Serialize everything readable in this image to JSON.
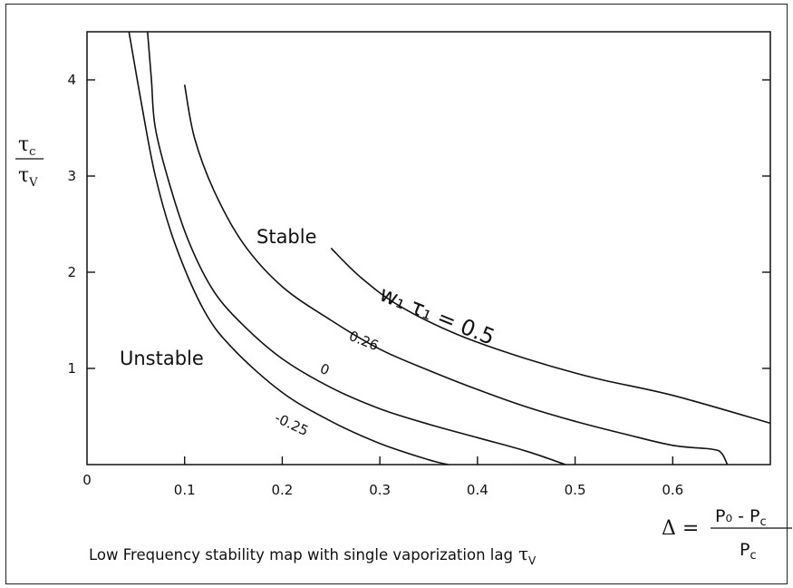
{
  "chart_data": {
    "type": "line",
    "title": "",
    "caption": "Low Frequency stability map with single vaporization lag",
    "caption_symbol": "τ",
    "caption_symbol_sub": "V",
    "xlim": [
      0,
      0.7
    ],
    "ylim": [
      0,
      4.5
    ],
    "x_ticks": [
      "0",
      "0.1",
      "0.2",
      "0.3",
      "0.4",
      "0.5",
      "0.6"
    ],
    "y_ticks": [
      "1",
      "2",
      "3",
      "4"
    ],
    "y_axis_label": {
      "num": "τ",
      "num_sub": "c",
      "den": "τ",
      "den_sub": "V"
    },
    "x_axis_label": {
      "lhs": "Δ =",
      "num": "P₀ - P",
      "num_sub": "c",
      "den": "P",
      "den_sub": "c"
    },
    "regions": {
      "stable": "Stable",
      "unstable": "Unstable"
    },
    "series": [
      {
        "name": "-0.25",
        "points": [
          [
            0.043,
            4.5
          ],
          [
            0.055,
            3.8
          ],
          [
            0.07,
            3.0
          ],
          [
            0.09,
            2.3
          ],
          [
            0.12,
            1.6
          ],
          [
            0.15,
            1.2
          ],
          [
            0.2,
            0.75
          ],
          [
            0.25,
            0.45
          ],
          [
            0.3,
            0.22
          ],
          [
            0.35,
            0.05
          ],
          [
            0.37,
            0.0
          ]
        ]
      },
      {
        "name": "0",
        "points": [
          [
            0.062,
            4.5
          ],
          [
            0.066,
            4.0
          ],
          [
            0.07,
            3.5
          ],
          [
            0.085,
            2.9
          ],
          [
            0.105,
            2.3
          ],
          [
            0.13,
            1.8
          ],
          [
            0.16,
            1.45
          ],
          [
            0.2,
            1.1
          ],
          [
            0.25,
            0.8
          ],
          [
            0.3,
            0.58
          ],
          [
            0.35,
            0.42
          ],
          [
            0.4,
            0.28
          ],
          [
            0.45,
            0.14
          ],
          [
            0.49,
            0.0
          ]
        ]
      },
      {
        "name": "0.26",
        "points": [
          [
            0.1,
            3.95
          ],
          [
            0.11,
            3.4
          ],
          [
            0.13,
            2.85
          ],
          [
            0.16,
            2.3
          ],
          [
            0.2,
            1.85
          ],
          [
            0.25,
            1.5
          ],
          [
            0.3,
            1.2
          ],
          [
            0.35,
            0.98
          ],
          [
            0.4,
            0.78
          ],
          [
            0.45,
            0.6
          ],
          [
            0.5,
            0.45
          ],
          [
            0.55,
            0.32
          ],
          [
            0.6,
            0.2
          ],
          [
            0.64,
            0.16
          ],
          [
            0.65,
            0.12
          ],
          [
            0.656,
            0.0
          ]
        ]
      },
      {
        "name": "w₁ τ₁ = 0.5",
        "points": [
          [
            0.25,
            2.25
          ],
          [
            0.28,
            1.95
          ],
          [
            0.32,
            1.65
          ],
          [
            0.38,
            1.35
          ],
          [
            0.45,
            1.1
          ],
          [
            0.52,
            0.9
          ],
          [
            0.6,
            0.72
          ],
          [
            0.7,
            0.43
          ]
        ]
      }
    ],
    "curve_labels": [
      {
        "text": "-0.25"
      },
      {
        "text": "0"
      },
      {
        "text": "0.26"
      },
      {
        "text": "w₁ τ₁ = 0.5"
      }
    ],
    "grid": false
  }
}
